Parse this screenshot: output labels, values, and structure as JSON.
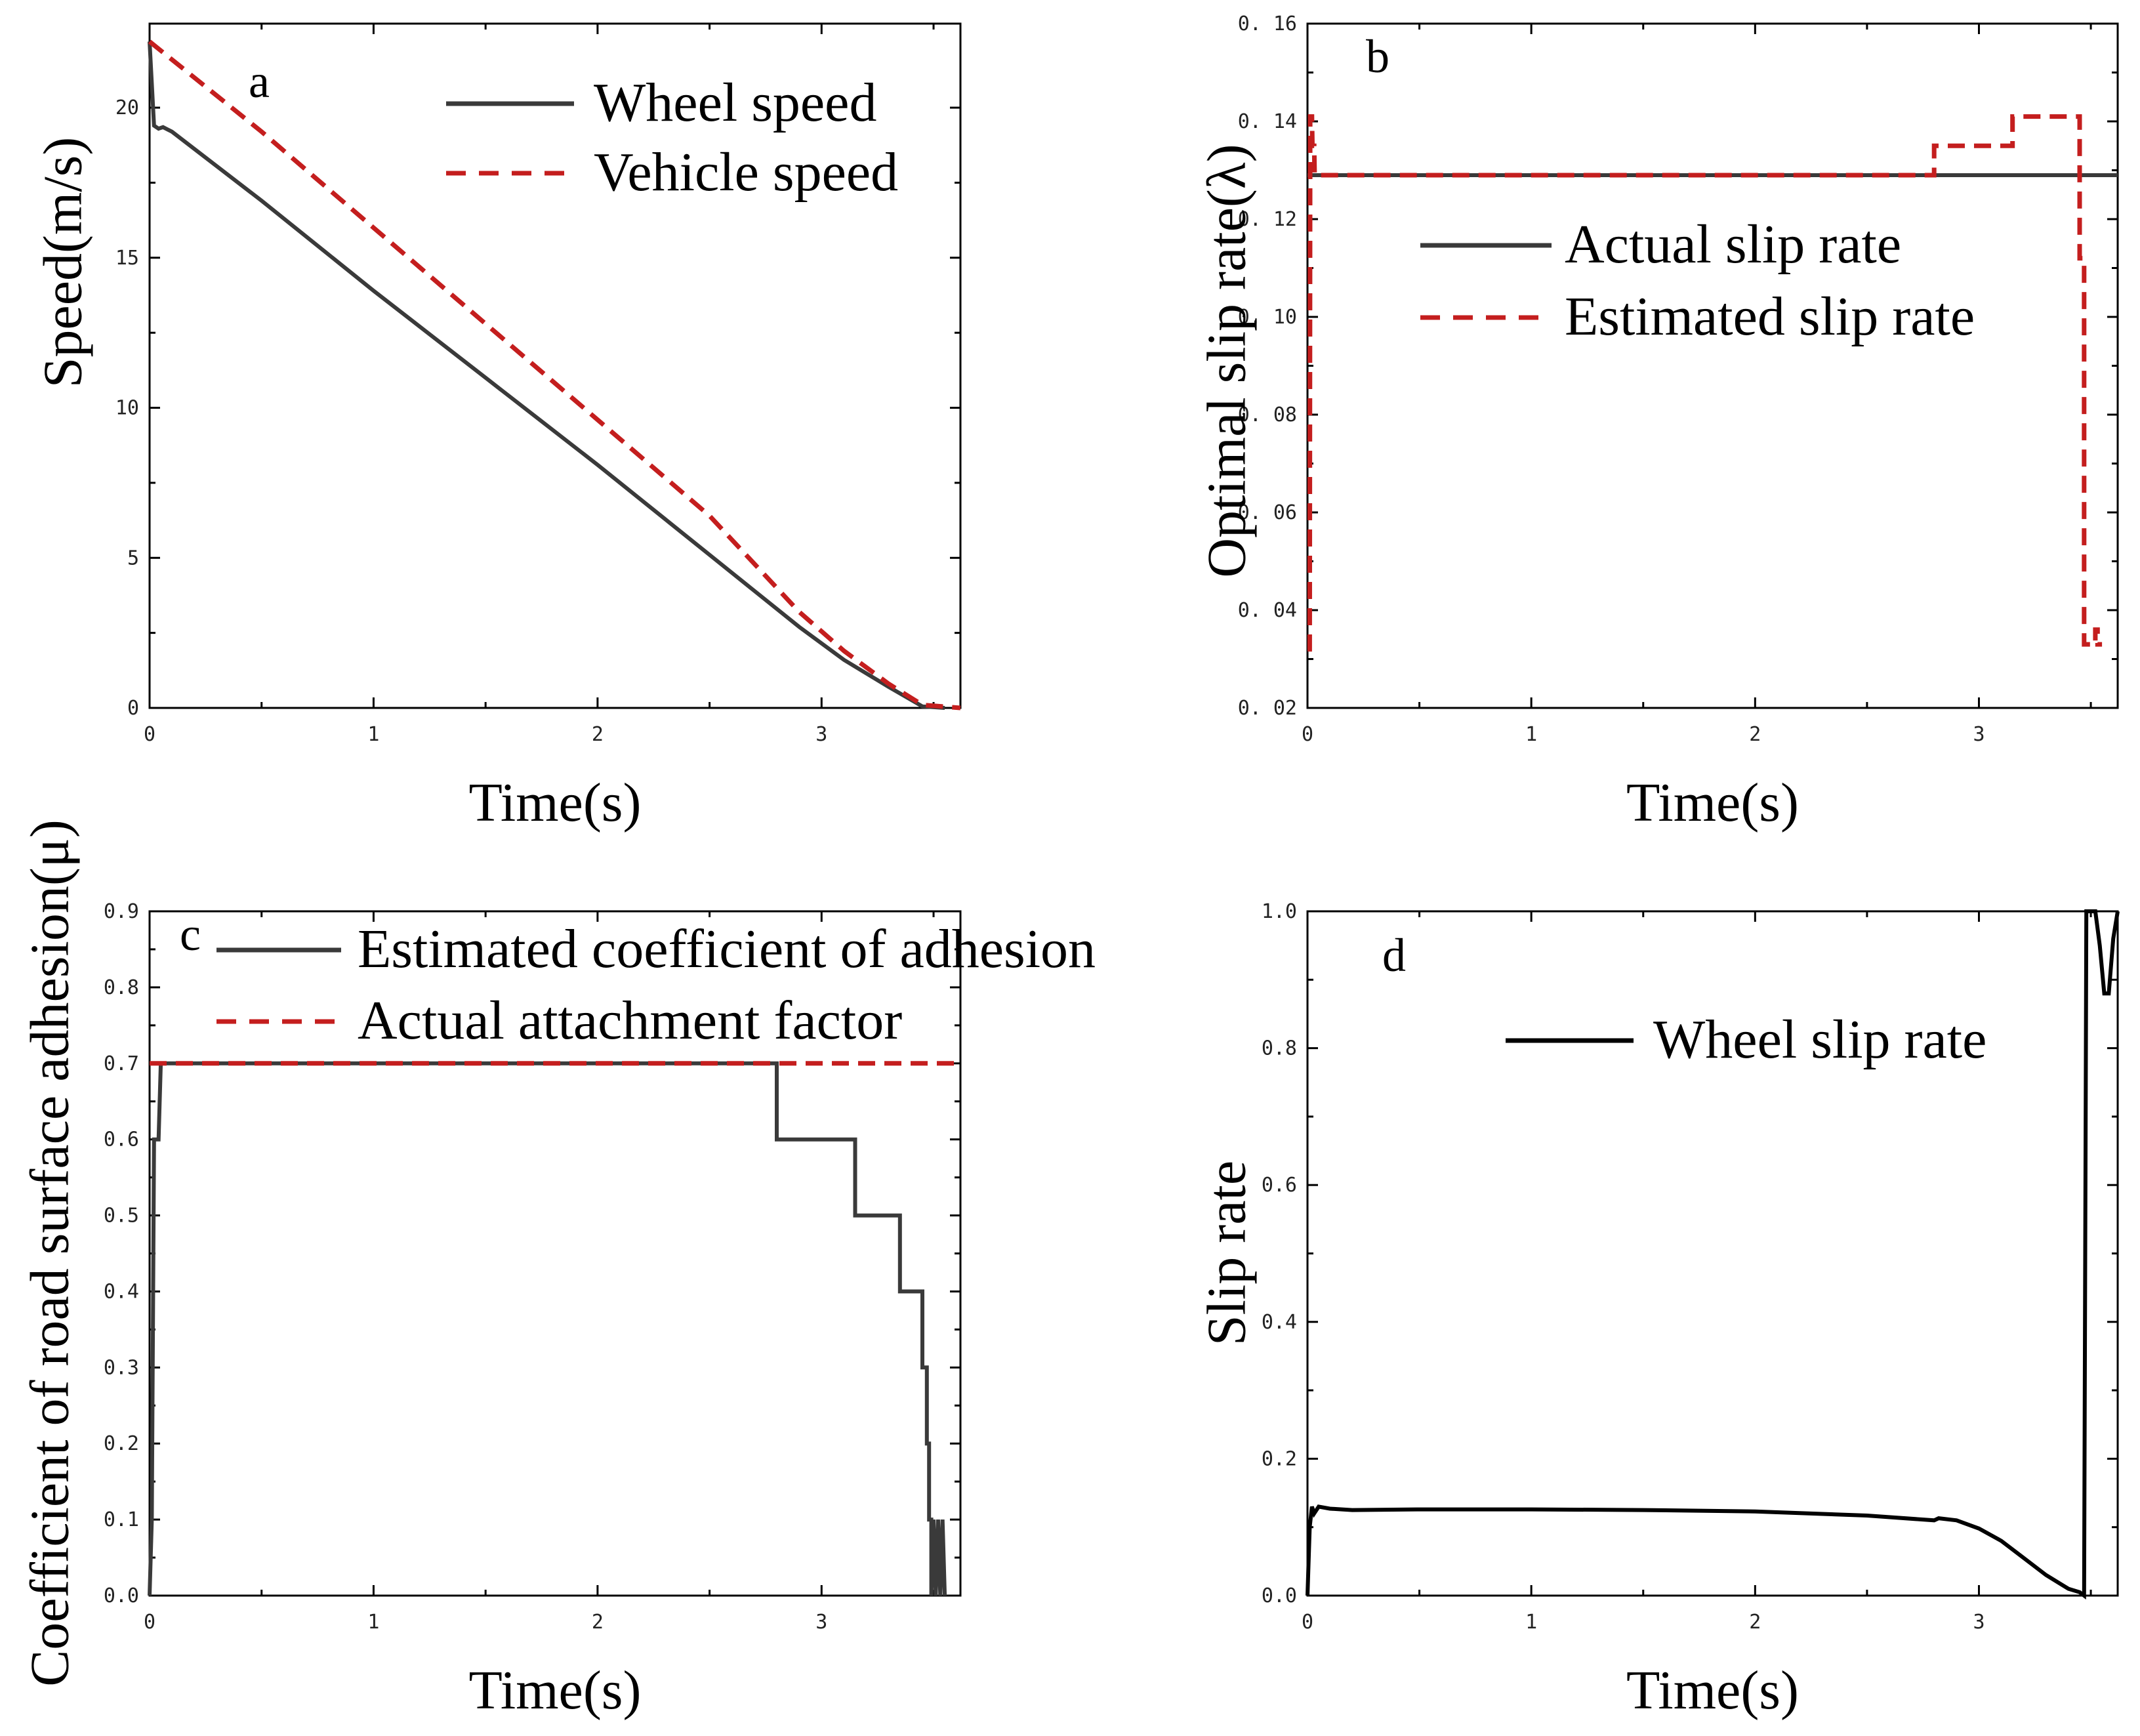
{
  "colors": {
    "solid": "#3a3a3a",
    "dashed": "#c41e1e",
    "black": "#000000"
  },
  "chart_data": [
    {
      "id": "a",
      "type": "line",
      "panel_label": "a",
      "xlabel": "Time(s)",
      "ylabel": "Speed(m/s)",
      "xlim": [
        0,
        3.62
      ],
      "ylim": [
        0,
        22.8
      ],
      "xticks": [
        0,
        1,
        2,
        3
      ],
      "xtick_labels": [
        "0",
        "1",
        "2",
        "3"
      ],
      "yticks": [
        0,
        5,
        10,
        15,
        20
      ],
      "ytick_labels": [
        "0",
        "5",
        "10",
        "15",
        "20"
      ],
      "legend_position": "top-right",
      "series": [
        {
          "name": "Wheel speed",
          "style": "solid",
          "color": "#3a3a3a",
          "points": [
            [
              0,
              22.2
            ],
            [
              0.02,
              19.4
            ],
            [
              0.04,
              19.3
            ],
            [
              0.06,
              19.35
            ],
            [
              0.1,
              19.2
            ],
            [
              0.5,
              16.9
            ],
            [
              1.0,
              13.9
            ],
            [
              1.5,
              11.0
            ],
            [
              2.0,
              8.1
            ],
            [
              2.5,
              5.1
            ],
            [
              2.9,
              2.7
            ],
            [
              3.1,
              1.6
            ],
            [
              3.3,
              0.7
            ],
            [
              3.45,
              0.05
            ],
            [
              3.55,
              0
            ]
          ]
        },
        {
          "name": "Vehicle speed",
          "style": "dashed",
          "color": "#c41e1e",
          "points": [
            [
              0,
              22.2
            ],
            [
              0.5,
              19.2
            ],
            [
              1.0,
              16.0
            ],
            [
              1.5,
              12.8
            ],
            [
              2.0,
              9.6
            ],
            [
              2.5,
              6.4
            ],
            [
              2.9,
              3.2
            ],
            [
              3.1,
              1.9
            ],
            [
              3.3,
              0.8
            ],
            [
              3.45,
              0.1
            ],
            [
              3.62,
              0
            ]
          ]
        }
      ]
    },
    {
      "id": "b",
      "type": "line",
      "panel_label": "b",
      "xlabel": "Time(s)",
      "ylabel": "Optimal slip rate(λ)",
      "xlim": [
        0,
        3.62
      ],
      "ylim": [
        0.02,
        0.16
      ],
      "xticks": [
        0,
        1,
        2,
        3
      ],
      "xtick_labels": [
        "0",
        "1",
        "2",
        "3"
      ],
      "yticks": [
        0.02,
        0.04,
        0.06,
        0.08,
        0.1,
        0.12,
        0.14,
        0.16
      ],
      "ytick_labels": [
        "0. 02",
        "0. 04",
        "0. 06",
        "0. 08",
        "0. 10",
        "0. 12",
        "0. 14",
        "0. 16"
      ],
      "legend_position": "center-right",
      "series": [
        {
          "name": "Actual slip rate",
          "style": "solid",
          "color": "#3a3a3a",
          "points": [
            [
              0,
              0.129
            ],
            [
              3.62,
              0.129
            ]
          ]
        },
        {
          "name": "Estimated slip rate",
          "style": "dashed",
          "color": "#c41e1e",
          "points": [
            [
              0,
              0.032
            ],
            [
              0.01,
              0.032
            ],
            [
              0.012,
              0.141
            ],
            [
              0.02,
              0.141
            ],
            [
              0.022,
              0.135
            ],
            [
              0.03,
              0.135
            ],
            [
              0.032,
              0.129
            ],
            [
              2.8,
              0.129
            ],
            [
              2.8,
              0.135
            ],
            [
              3.15,
              0.135
            ],
            [
              3.15,
              0.141
            ],
            [
              3.45,
              0.141
            ],
            [
              3.45,
              0.112
            ],
            [
              3.47,
              0.112
            ],
            [
              3.47,
              0.033
            ],
            [
              3.52,
              0.033
            ],
            [
              3.52,
              0.036
            ],
            [
              3.53,
              0.036
            ],
            [
              3.53,
              0.033
            ],
            [
              3.55,
              0.033
            ]
          ]
        }
      ]
    },
    {
      "id": "c",
      "type": "line",
      "panel_label": "c",
      "xlabel": "Time(s)",
      "ylabel": "Coefficient of road surface adhesion(μ)",
      "xlim": [
        0,
        3.62
      ],
      "ylim": [
        0,
        0.9
      ],
      "xticks": [
        0,
        1,
        2,
        3
      ],
      "xtick_labels": [
        "0",
        "1",
        "2",
        "3"
      ],
      "yticks": [
        0,
        0.1,
        0.2,
        0.3,
        0.4,
        0.5,
        0.6,
        0.7,
        0.8,
        0.9
      ],
      "ytick_labels": [
        "0.0",
        "0.1",
        "0.2",
        "0.3",
        "0.4",
        "0.5",
        "0.6",
        "0.7",
        "0.8",
        "0.9"
      ],
      "legend_position": "top",
      "series": [
        {
          "name": "Estimated coefficient of adhesion",
          "style": "solid",
          "color": "#3a3a3a",
          "points": [
            [
              0,
              0
            ],
            [
              0.01,
              0.1
            ],
            [
              0.02,
              0.6
            ],
            [
              0.04,
              0.6
            ],
            [
              0.05,
              0.7
            ],
            [
              2.8,
              0.7
            ],
            [
              2.8,
              0.6
            ],
            [
              3.15,
              0.6
            ],
            [
              3.15,
              0.5
            ],
            [
              3.35,
              0.5
            ],
            [
              3.35,
              0.4
            ],
            [
              3.45,
              0.4
            ],
            [
              3.45,
              0.3
            ],
            [
              3.47,
              0.3
            ],
            [
              3.47,
              0.2
            ],
            [
              3.48,
              0.2
            ],
            [
              3.48,
              0.1
            ],
            [
              3.49,
              0.1
            ],
            [
              3.49,
              0
            ],
            [
              3.5,
              0.1
            ],
            [
              3.51,
              0
            ],
            [
              3.52,
              0.1
            ],
            [
              3.53,
              0
            ],
            [
              3.54,
              0.1
            ],
            [
              3.55,
              0
            ]
          ]
        },
        {
          "name": "Actual attachment factor",
          "style": "dashed",
          "color": "#c41e1e",
          "points": [
            [
              0,
              0.7
            ],
            [
              3.62,
              0.7
            ]
          ]
        }
      ]
    },
    {
      "id": "d",
      "type": "line",
      "panel_label": "d",
      "xlabel": "Time(s)",
      "ylabel": "Slip rate",
      "xlim": [
        0,
        3.62
      ],
      "ylim": [
        0,
        1.0
      ],
      "xticks": [
        0,
        1,
        2,
        3
      ],
      "xtick_labels": [
        "0",
        "1",
        "2",
        "3"
      ],
      "yticks": [
        0,
        0.2,
        0.4,
        0.6,
        0.8,
        1.0
      ],
      "ytick_labels": [
        "0.0",
        "0.2",
        "0.4",
        "0.6",
        "0.8",
        "1.0"
      ],
      "legend_position": "top-right",
      "series": [
        {
          "name": "Wheel slip rate",
          "style": "solid",
          "color": "#000000",
          "points": [
            [
              0,
              0
            ],
            [
              0.01,
              0.1
            ],
            [
              0.02,
              0.13
            ],
            [
              0.03,
              0.12
            ],
            [
              0.05,
              0.13
            ],
            [
              0.1,
              0.127
            ],
            [
              0.2,
              0.125
            ],
            [
              0.5,
              0.126
            ],
            [
              1.0,
              0.126
            ],
            [
              1.5,
              0.125
            ],
            [
              2.0,
              0.123
            ],
            [
              2.5,
              0.117
            ],
            [
              2.8,
              0.11
            ],
            [
              2.82,
              0.113
            ],
            [
              2.9,
              0.11
            ],
            [
              3.0,
              0.098
            ],
            [
              3.1,
              0.08
            ],
            [
              3.2,
              0.055
            ],
            [
              3.3,
              0.03
            ],
            [
              3.4,
              0.01
            ],
            [
              3.45,
              0.005
            ],
            [
              3.47,
              0
            ],
            [
              3.48,
              1.0
            ],
            [
              3.52,
              1.0
            ],
            [
              3.54,
              0.95
            ],
            [
              3.56,
              0.88
            ],
            [
              3.58,
              0.88
            ],
            [
              3.6,
              0.96
            ],
            [
              3.62,
              1.0
            ]
          ]
        }
      ]
    }
  ]
}
